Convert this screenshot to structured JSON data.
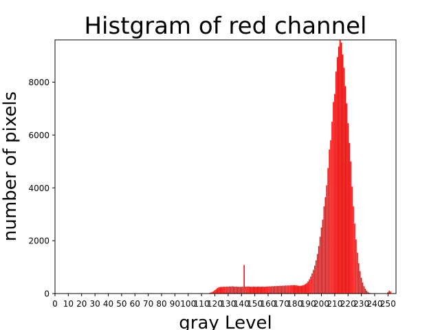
{
  "chart_data": {
    "type": "bar",
    "title": "Histgram of red channel",
    "xlabel": "gray Level",
    "ylabel": "number of pixels",
    "xlim": [
      0,
      256
    ],
    "ylim": [
      0,
      9600
    ],
    "x_ticks": [
      0,
      10,
      20,
      30,
      40,
      50,
      60,
      70,
      80,
      90,
      100,
      110,
      120,
      130,
      140,
      150,
      160,
      170,
      180,
      190,
      200,
      210,
      220,
      230,
      240,
      250
    ],
    "y_ticks": [
      0,
      2000,
      4000,
      6000,
      8000
    ],
    "grid": false,
    "bar_color": "#ff0000",
    "bins": [
      {
        "x": 116,
        "v": 20
      },
      {
        "x": 117,
        "v": 40
      },
      {
        "x": 118,
        "v": 60
      },
      {
        "x": 119,
        "v": 90
      },
      {
        "x": 120,
        "v": 130
      },
      {
        "x": 121,
        "v": 170
      },
      {
        "x": 122,
        "v": 210
      },
      {
        "x": 123,
        "v": 240
      },
      {
        "x": 124,
        "v": 250
      },
      {
        "x": 125,
        "v": 250
      },
      {
        "x": 126,
        "v": 255
      },
      {
        "x": 127,
        "v": 260
      },
      {
        "x": 128,
        "v": 255
      },
      {
        "x": 129,
        "v": 265
      },
      {
        "x": 130,
        "v": 260
      },
      {
        "x": 131,
        "v": 270
      },
      {
        "x": 132,
        "v": 265
      },
      {
        "x": 133,
        "v": 275
      },
      {
        "x": 134,
        "v": 270
      },
      {
        "x": 135,
        "v": 260
      },
      {
        "x": 136,
        "v": 265
      },
      {
        "x": 137,
        "v": 255
      },
      {
        "x": 138,
        "v": 260
      },
      {
        "x": 139,
        "v": 250
      },
      {
        "x": 140,
        "v": 255
      },
      {
        "x": 141,
        "v": 260
      },
      {
        "x": 142,
        "v": 1080
      },
      {
        "x": 143,
        "v": 265
      },
      {
        "x": 144,
        "v": 260
      },
      {
        "x": 145,
        "v": 270
      },
      {
        "x": 146,
        "v": 265
      },
      {
        "x": 147,
        "v": 260
      },
      {
        "x": 148,
        "v": 255
      },
      {
        "x": 149,
        "v": 265
      },
      {
        "x": 150,
        "v": 260
      },
      {
        "x": 151,
        "v": 255
      },
      {
        "x": 152,
        "v": 260
      },
      {
        "x": 153,
        "v": 265
      },
      {
        "x": 154,
        "v": 255
      },
      {
        "x": 155,
        "v": 260
      },
      {
        "x": 156,
        "v": 265
      },
      {
        "x": 157,
        "v": 255
      },
      {
        "x": 158,
        "v": 260
      },
      {
        "x": 159,
        "v": 270
      },
      {
        "x": 160,
        "v": 265
      },
      {
        "x": 161,
        "v": 275
      },
      {
        "x": 162,
        "v": 270
      },
      {
        "x": 163,
        "v": 280
      },
      {
        "x": 164,
        "v": 275
      },
      {
        "x": 165,
        "v": 285
      },
      {
        "x": 166,
        "v": 280
      },
      {
        "x": 167,
        "v": 290
      },
      {
        "x": 168,
        "v": 285
      },
      {
        "x": 169,
        "v": 295
      },
      {
        "x": 170,
        "v": 290
      },
      {
        "x": 171,
        "v": 300
      },
      {
        "x": 172,
        "v": 295
      },
      {
        "x": 173,
        "v": 305
      },
      {
        "x": 174,
        "v": 300
      },
      {
        "x": 175,
        "v": 310
      },
      {
        "x": 176,
        "v": 305
      },
      {
        "x": 177,
        "v": 315
      },
      {
        "x": 178,
        "v": 310
      },
      {
        "x": 179,
        "v": 320
      },
      {
        "x": 180,
        "v": 315
      },
      {
        "x": 181,
        "v": 310
      },
      {
        "x": 182,
        "v": 300
      },
      {
        "x": 183,
        "v": 295
      },
      {
        "x": 184,
        "v": 290
      },
      {
        "x": 185,
        "v": 300
      },
      {
        "x": 186,
        "v": 310
      },
      {
        "x": 187,
        "v": 330
      },
      {
        "x": 188,
        "v": 360
      },
      {
        "x": 189,
        "v": 400
      },
      {
        "x": 190,
        "v": 460
      },
      {
        "x": 191,
        "v": 540
      },
      {
        "x": 192,
        "v": 640
      },
      {
        "x": 193,
        "v": 760
      },
      {
        "x": 194,
        "v": 900
      },
      {
        "x": 195,
        "v": 1060
      },
      {
        "x": 196,
        "v": 1260
      },
      {
        "x": 197,
        "v": 1500
      },
      {
        "x": 198,
        "v": 1800
      },
      {
        "x": 199,
        "v": 2150
      },
      {
        "x": 200,
        "v": 2500
      },
      {
        "x": 201,
        "v": 2800
      },
      {
        "x": 202,
        "v": 3300
      },
      {
        "x": 203,
        "v": 3650
      },
      {
        "x": 204,
        "v": 4100
      },
      {
        "x": 205,
        "v": 4750
      },
      {
        "x": 206,
        "v": 5450
      },
      {
        "x": 207,
        "v": 5800
      },
      {
        "x": 208,
        "v": 6500
      },
      {
        "x": 209,
        "v": 7250
      },
      {
        "x": 210,
        "v": 7550
      },
      {
        "x": 211,
        "v": 8400
      },
      {
        "x": 212,
        "v": 8950
      },
      {
        "x": 213,
        "v": 9350
      },
      {
        "x": 214,
        "v": 9600
      },
      {
        "x": 215,
        "v": 9500
      },
      {
        "x": 216,
        "v": 9050
      },
      {
        "x": 217,
        "v": 8550
      },
      {
        "x": 218,
        "v": 7850
      },
      {
        "x": 219,
        "v": 7200
      },
      {
        "x": 220,
        "v": 6450
      },
      {
        "x": 221,
        "v": 5700
      },
      {
        "x": 222,
        "v": 5000
      },
      {
        "x": 223,
        "v": 4050
      },
      {
        "x": 224,
        "v": 3300
      },
      {
        "x": 225,
        "v": 2650
      },
      {
        "x": 226,
        "v": 2050
      },
      {
        "x": 227,
        "v": 1550
      },
      {
        "x": 228,
        "v": 1150
      },
      {
        "x": 229,
        "v": 850
      },
      {
        "x": 230,
        "v": 600
      },
      {
        "x": 231,
        "v": 420
      },
      {
        "x": 232,
        "v": 280
      },
      {
        "x": 233,
        "v": 180
      },
      {
        "x": 234,
        "v": 110
      },
      {
        "x": 235,
        "v": 60
      },
      {
        "x": 236,
        "v": 30
      },
      {
        "x": 237,
        "v": 15
      },
      {
        "x": 250,
        "v": 60
      },
      {
        "x": 251,
        "v": 110
      },
      {
        "x": 252,
        "v": 70
      }
    ]
  }
}
